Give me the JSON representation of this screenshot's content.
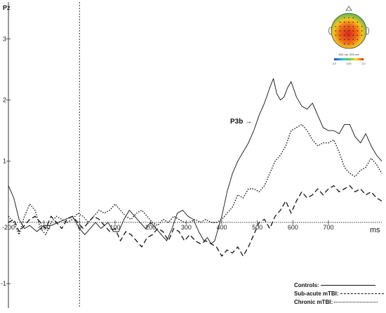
{
  "chart_data": {
    "type": "line",
    "title": "Pz",
    "xlabel": "ms",
    "ylabel": "",
    "xlim": [
      -200,
      850
    ],
    "ylim": [
      -1.4,
      3.6
    ],
    "x_ticks": [
      -200,
      -100,
      0,
      100,
      200,
      300,
      400,
      500,
      600,
      700
    ],
    "y_ticks": [
      -1,
      1,
      2,
      3
    ],
    "annotation": "P3b →",
    "series": [
      {
        "name": "Controls:",
        "style": "solid",
        "points": [
          [
            -200,
            0.6
          ],
          [
            -185,
            0.4
          ],
          [
            -170,
            0.05
          ],
          [
            -155,
            -0.1
          ],
          [
            -140,
            -0.05
          ],
          [
            -120,
            -0.15
          ],
          [
            -100,
            -0.05
          ],
          [
            -80,
            -0.05
          ],
          [
            -60,
            0.0
          ],
          [
            -40,
            0.05
          ],
          [
            -20,
            0.1
          ],
          [
            0,
            -0.1
          ],
          [
            15,
            -0.2
          ],
          [
            30,
            -0.1
          ],
          [
            45,
            0.0
          ],
          [
            60,
            -0.1
          ],
          [
            80,
            0.0
          ],
          [
            95,
            -0.15
          ],
          [
            110,
            -0.15
          ],
          [
            125,
            0.05
          ],
          [
            140,
            0.2
          ],
          [
            155,
            0.1
          ],
          [
            170,
            0.0
          ],
          [
            185,
            -0.1
          ],
          [
            200,
            0.0
          ],
          [
            215,
            -0.1
          ],
          [
            230,
            -0.2
          ],
          [
            245,
            -0.3
          ],
          [
            260,
            -0.1
          ],
          [
            275,
            0.15
          ],
          [
            290,
            0.2
          ],
          [
            305,
            0.1
          ],
          [
            320,
            0.05
          ],
          [
            335,
            -0.15
          ],
          [
            350,
            -0.3
          ],
          [
            360,
            -0.25
          ],
          [
            370,
            -0.35
          ],
          [
            380,
            -0.3
          ],
          [
            390,
            -0.1
          ],
          [
            400,
            0.1
          ],
          [
            415,
            0.5
          ],
          [
            430,
            0.8
          ],
          [
            445,
            1.0
          ],
          [
            460,
            1.15
          ],
          [
            475,
            1.3
          ],
          [
            490,
            1.5
          ],
          [
            505,
            1.75
          ],
          [
            520,
            1.95
          ],
          [
            535,
            2.2
          ],
          [
            545,
            2.35
          ],
          [
            555,
            2.1
          ],
          [
            565,
            2.0
          ],
          [
            575,
            2.05
          ],
          [
            585,
            2.2
          ],
          [
            595,
            2.3
          ],
          [
            610,
            2.05
          ],
          [
            625,
            1.9
          ],
          [
            640,
            1.85
          ],
          [
            655,
            1.95
          ],
          [
            670,
            1.75
          ],
          [
            685,
            1.55
          ],
          [
            700,
            1.5
          ],
          [
            715,
            1.5
          ],
          [
            730,
            1.45
          ],
          [
            745,
            1.6
          ],
          [
            760,
            1.6
          ],
          [
            775,
            1.4
          ],
          [
            790,
            1.3
          ],
          [
            805,
            1.45
          ],
          [
            820,
            1.25
          ],
          [
            835,
            1.1
          ],
          [
            850,
            1.0
          ]
        ]
      },
      {
        "name": "Sub-acute mTBI:",
        "style": "dashed",
        "points": [
          [
            -200,
            0.0
          ],
          [
            -185,
            0.05
          ],
          [
            -170,
            -0.15
          ],
          [
            -155,
            -0.05
          ],
          [
            -140,
            0.05
          ],
          [
            -125,
            0.1
          ],
          [
            -110,
            0.0
          ],
          [
            -95,
            -0.1
          ],
          [
            -80,
            0.1
          ],
          [
            -65,
            0.0
          ],
          [
            -50,
            -0.1
          ],
          [
            -35,
            0.05
          ],
          [
            -20,
            0.1
          ],
          [
            -5,
            0.0
          ],
          [
            10,
            -0.1
          ],
          [
            25,
            0.0
          ],
          [
            40,
            0.1
          ],
          [
            55,
            0.05
          ],
          [
            70,
            -0.05
          ],
          [
            85,
            -0.15
          ],
          [
            100,
            -0.1
          ],
          [
            115,
            -0.3
          ],
          [
            130,
            -0.15
          ],
          [
            145,
            -0.2
          ],
          [
            160,
            -0.3
          ],
          [
            175,
            -0.4
          ],
          [
            190,
            -0.25
          ],
          [
            205,
            -0.2
          ],
          [
            220,
            -0.1
          ],
          [
            235,
            -0.15
          ],
          [
            250,
            -0.3
          ],
          [
            265,
            -0.1
          ],
          [
            280,
            -0.15
          ],
          [
            295,
            -0.3
          ],
          [
            310,
            -0.2
          ],
          [
            325,
            -0.3
          ],
          [
            340,
            -0.35
          ],
          [
            355,
            -0.3
          ],
          [
            370,
            -0.35
          ],
          [
            385,
            -0.4
          ],
          [
            400,
            -0.55
          ],
          [
            415,
            -0.45
          ],
          [
            430,
            -0.5
          ],
          [
            445,
            -0.4
          ],
          [
            460,
            -0.55
          ],
          [
            475,
            -0.4
          ],
          [
            490,
            -0.2
          ],
          [
            505,
            0.0
          ],
          [
            520,
            0.05
          ],
          [
            535,
            -0.1
          ],
          [
            550,
            0.1
          ],
          [
            565,
            0.2
          ],
          [
            580,
            0.35
          ],
          [
            595,
            0.15
          ],
          [
            610,
            0.35
          ],
          [
            625,
            0.5
          ],
          [
            640,
            0.4
          ],
          [
            655,
            0.45
          ],
          [
            670,
            0.55
          ],
          [
            685,
            0.45
          ],
          [
            700,
            0.55
          ],
          [
            715,
            0.6
          ],
          [
            730,
            0.5
          ],
          [
            745,
            0.55
          ],
          [
            760,
            0.6
          ],
          [
            775,
            0.5
          ],
          [
            790,
            0.55
          ],
          [
            805,
            0.45
          ],
          [
            820,
            0.5
          ],
          [
            835,
            0.4
          ],
          [
            850,
            0.35
          ]
        ]
      },
      {
        "name": "Chronic mTBI:",
        "style": "dotted",
        "points": [
          [
            -200,
            0.1
          ],
          [
            -185,
            0.0
          ],
          [
            -170,
            -0.2
          ],
          [
            -155,
            0.1
          ],
          [
            -140,
            0.3
          ],
          [
            -125,
            0.2
          ],
          [
            -110,
            -0.1
          ],
          [
            -95,
            -0.2
          ],
          [
            -80,
            0.0
          ],
          [
            -65,
            0.1
          ],
          [
            -50,
            0.05
          ],
          [
            -35,
            0.0
          ],
          [
            -20,
            0.05
          ],
          [
            -5,
            0.15
          ],
          [
            10,
            0.1
          ],
          [
            25,
            0.0
          ],
          [
            40,
            0.1
          ],
          [
            55,
            0.2
          ],
          [
            70,
            0.15
          ],
          [
            85,
            0.2
          ],
          [
            100,
            0.3
          ],
          [
            115,
            0.2
          ],
          [
            130,
            0.1
          ],
          [
            145,
            0.05
          ],
          [
            160,
            0.15
          ],
          [
            175,
            0.2
          ],
          [
            190,
            0.1
          ],
          [
            205,
            0.0
          ],
          [
            220,
            -0.05
          ],
          [
            235,
            0.05
          ],
          [
            250,
            0.0
          ],
          [
            265,
            0.1
          ],
          [
            280,
            0.05
          ],
          [
            295,
            0.0
          ],
          [
            310,
            0.0
          ],
          [
            325,
            0.05
          ],
          [
            340,
            0.0
          ],
          [
            355,
            0.05
          ],
          [
            370,
            0.0
          ],
          [
            385,
            0.0
          ],
          [
            400,
            0.05
          ],
          [
            415,
            0.15
          ],
          [
            430,
            0.25
          ],
          [
            445,
            0.45
          ],
          [
            460,
            0.4
          ],
          [
            475,
            0.55
          ],
          [
            490,
            0.55
          ],
          [
            505,
            0.5
          ],
          [
            520,
            0.6
          ],
          [
            535,
            0.8
          ],
          [
            550,
            1.0
          ],
          [
            565,
            1.1
          ],
          [
            580,
            1.25
          ],
          [
            595,
            1.5
          ],
          [
            610,
            1.55
          ],
          [
            625,
            1.6
          ],
          [
            640,
            1.5
          ],
          [
            655,
            1.35
          ],
          [
            670,
            1.25
          ],
          [
            685,
            1.3
          ],
          [
            700,
            1.3
          ],
          [
            715,
            1.35
          ],
          [
            730,
            1.15
          ],
          [
            745,
            0.9
          ],
          [
            760,
            0.8
          ],
          [
            775,
            0.75
          ],
          [
            790,
            0.85
          ],
          [
            805,
            0.9
          ],
          [
            820,
            1.05
          ],
          [
            835,
            0.95
          ],
          [
            850,
            0.8
          ]
        ]
      }
    ]
  },
  "inset_map": {
    "caption": "500 ms -615 ms",
    "scale_min": "-2.0",
    "scale_mid": "0.00",
    "scale_max": "2.0",
    "colors": {
      "center": "#d8261c",
      "mid": "#f5a623",
      "outer": "#4caf50"
    }
  },
  "colors": {
    "line": "#111111",
    "axis": "#333333"
  }
}
